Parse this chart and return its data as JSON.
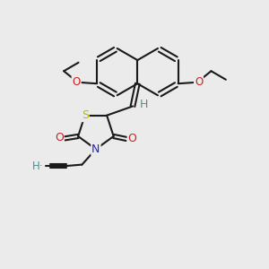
{
  "bg_color": "#ebebeb",
  "line_color": "#1a1a1a",
  "bond_width": 1.5,
  "font_size_atoms": 8.5,
  "S_color": "#b8b800",
  "N_color": "#2222cc",
  "O_color": "#cc2222",
  "H_color": "#4a9090",
  "figsize": [
    3.0,
    3.0
  ],
  "dpi": 100,
  "xlim": [
    0,
    10
  ],
  "ylim": [
    0,
    10
  ]
}
